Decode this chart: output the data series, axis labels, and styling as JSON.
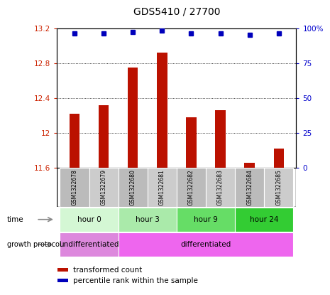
{
  "title": "GDS5410 / 27700",
  "samples": [
    "GSM1322678",
    "GSM1322679",
    "GSM1322680",
    "GSM1322681",
    "GSM1322682",
    "GSM1322683",
    "GSM1322684",
    "GSM1322685"
  ],
  "transformed_counts": [
    12.22,
    12.32,
    12.75,
    12.92,
    12.18,
    12.26,
    11.66,
    11.82
  ],
  "percentile_ranks": [
    96,
    96,
    97,
    98,
    96,
    96,
    95,
    96
  ],
  "ylim_left": [
    11.6,
    13.2
  ],
  "ylim_right": [
    0,
    100
  ],
  "yticks_left": [
    11.6,
    12.0,
    12.4,
    12.8,
    13.2
  ],
  "yticks_right": [
    0,
    25,
    50,
    75,
    100
  ],
  "ytick_labels_left": [
    "11.6",
    "12",
    "12.4",
    "12.8",
    "13.2"
  ],
  "ytick_labels_right": [
    "0",
    "25",
    "50",
    "75",
    "100%"
  ],
  "time_groups": [
    {
      "label": "hour 0",
      "start": 0,
      "end": 2,
      "color": "#d4f7d4"
    },
    {
      "label": "hour 3",
      "start": 2,
      "end": 4,
      "color": "#aaeaaa"
    },
    {
      "label": "hour 9",
      "start": 4,
      "end": 6,
      "color": "#66dd66"
    },
    {
      "label": "hour 24",
      "start": 6,
      "end": 8,
      "color": "#33cc33"
    }
  ],
  "growth_groups": [
    {
      "label": "undifferentiated",
      "start": 0,
      "end": 2,
      "color": "#dd88dd"
    },
    {
      "label": "differentiated",
      "start": 2,
      "end": 8,
      "color": "#ee66ee"
    }
  ],
  "bar_color": "#bb1100",
  "dot_color": "#0000bb",
  "grid_color": "#000000",
  "title_color": "#000000",
  "left_axis_color": "#cc2200",
  "right_axis_color": "#0000cc",
  "sample_box_color": "#bbbbbb",
  "sample_box_alt_color": "#cccccc",
  "bg_color": "#ffffff"
}
